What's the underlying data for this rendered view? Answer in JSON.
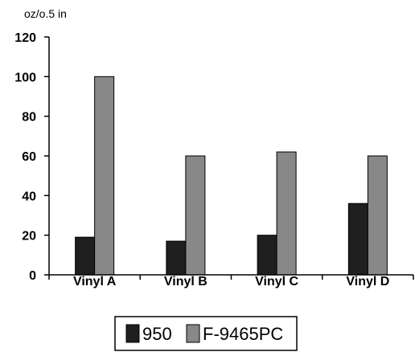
{
  "chart_data": {
    "type": "bar",
    "unit_label": "oz/o.5 in",
    "categories": [
      "Vinyl A",
      "Vinyl B",
      "Vinyl C",
      "Vinyl D"
    ],
    "series": [
      {
        "name": "950",
        "values": [
          19,
          17,
          20,
          36
        ],
        "color": "#1f1f1f"
      },
      {
        "name": "F-9465PC",
        "values": [
          100,
          60,
          62,
          60
        ],
        "color": "#888888"
      }
    ],
    "ylim": [
      0,
      120
    ],
    "yticks": [
      "0",
      "20",
      "40",
      "60",
      "80",
      "100",
      "120"
    ],
    "grid": false,
    "legend_position": "bottom"
  }
}
